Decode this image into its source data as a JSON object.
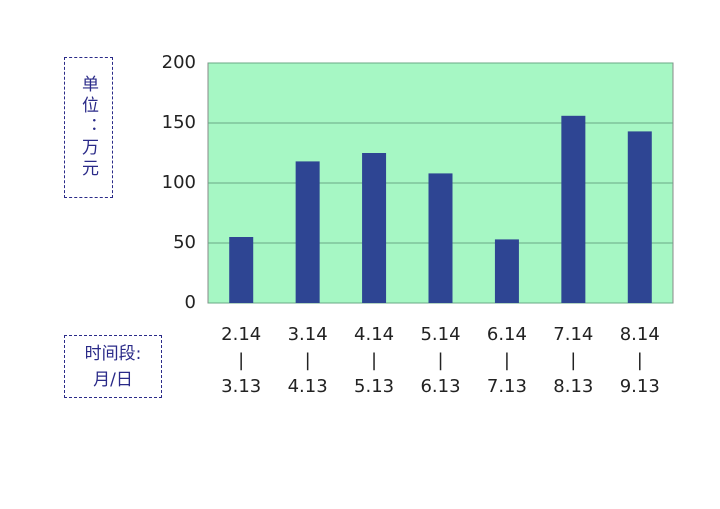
{
  "chart_data": {
    "type": "bar",
    "y_label": "单位：万元",
    "x_label": "时间段:\n月/日",
    "categories": [
      "2.14\n|\n3.13",
      "3.14\n|\n4.13",
      "4.14\n|\n5.13",
      "5.14\n|\n6.13",
      "6.14\n|\n7.13",
      "7.14\n|\n8.13",
      "8.14\n|\n9.13"
    ],
    "values": [
      55,
      118,
      125,
      108,
      53,
      156,
      143
    ],
    "color": "#2e4593",
    "background": "#a6f7c4",
    "ylim": [
      0,
      200
    ],
    "yticks": [
      0,
      50,
      100,
      150,
      200
    ],
    "grid": true
  }
}
